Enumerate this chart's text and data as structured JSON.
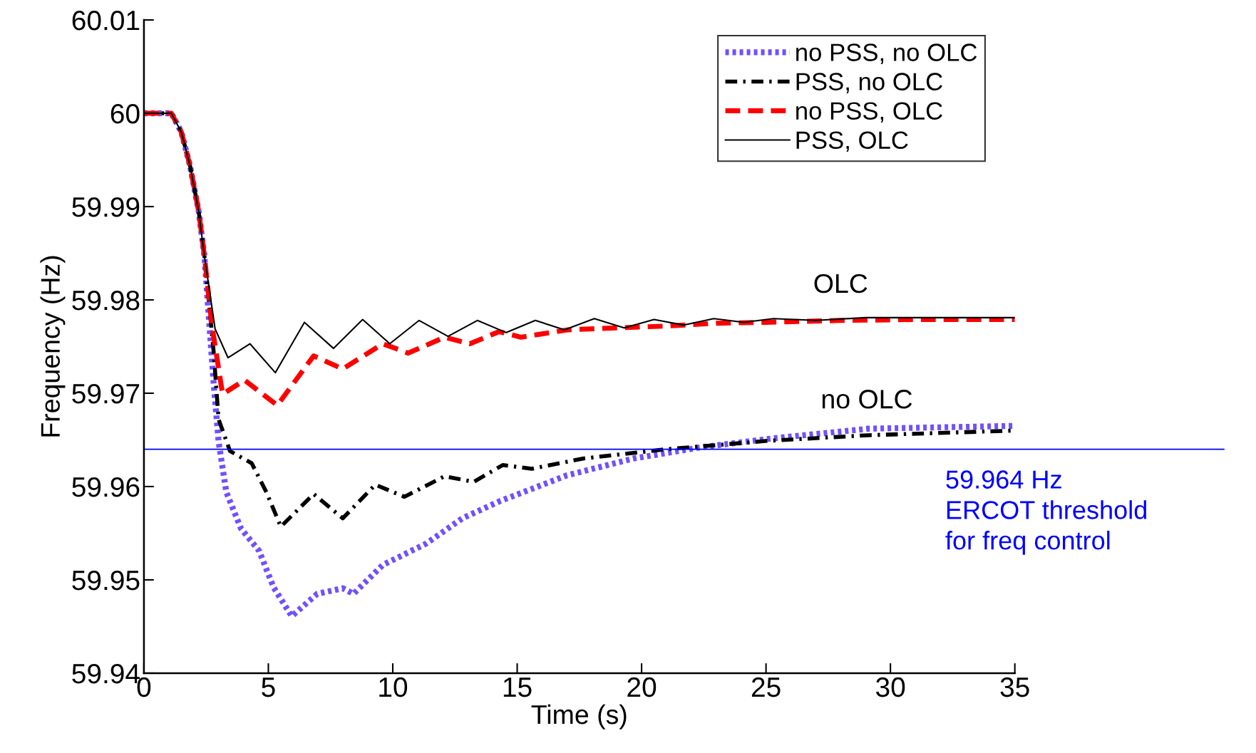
{
  "chart_data": {
    "type": "line",
    "xlabel": "Time (s)",
    "ylabel": "Frequency (Hz)",
    "xlim": [
      0,
      35
    ],
    "ylim": [
      59.94,
      60.01
    ],
    "xticks": [
      0,
      5,
      10,
      15,
      20,
      25,
      30,
      35
    ],
    "yticks": [
      59.94,
      59.95,
      59.96,
      59.97,
      59.98,
      59.99,
      60,
      60.01
    ],
    "grid": false,
    "legend": "top right",
    "series": [
      {
        "name": "no PSS, no OLC",
        "color": "#7050ff",
        "line_style": "dotted",
        "x": [
          0,
          1.1,
          1.5,
          1.85,
          2.2,
          2.43,
          2.8,
          3.0,
          3.31,
          3.9,
          4.63,
          5.21,
          5.94,
          6.96,
          7.99,
          8.42,
          9.6,
          11.35,
          12.8,
          14.27,
          17.0,
          19.67,
          22.37,
          25.07,
          29.1,
          35
        ],
        "values": [
          60,
          60,
          59.998,
          59.9944,
          59.9895,
          59.9847,
          59.9711,
          59.9648,
          59.9594,
          59.9555,
          59.9531,
          59.9492,
          59.9461,
          59.9485,
          59.9491,
          59.9485,
          59.9516,
          59.9539,
          59.9566,
          59.9584,
          59.9612,
          59.963,
          59.9642,
          59.9651,
          59.9662,
          59.9665
        ]
      },
      {
        "name": "PSS, no OLC",
        "color": "#000000",
        "line_style": "dashdot",
        "x": [
          0,
          1.1,
          1.5,
          1.85,
          2.2,
          2.43,
          2.8,
          3.0,
          3.46,
          4.33,
          4.92,
          5.5,
          6.82,
          7.99,
          9.3,
          10.47,
          12.08,
          13.25,
          14.42,
          15.58,
          17.64,
          21.0,
          25.07,
          29.1,
          35
        ],
        "values": [
          60,
          60,
          59.998,
          59.9944,
          59.9895,
          59.9847,
          59.9745,
          59.9672,
          59.9638,
          59.9625,
          59.9594,
          59.9557,
          59.9592,
          59.9566,
          59.9602,
          59.9589,
          59.9611,
          59.9605,
          59.9623,
          59.9619,
          59.963,
          59.964,
          59.9649,
          59.9655,
          59.966
        ]
      },
      {
        "name": "no PSS, OLC",
        "color": "#ff0000",
        "line_style": "dashed",
        "x": [
          0,
          1.1,
          1.5,
          1.85,
          2.2,
          2.43,
          2.72,
          3.16,
          4.04,
          5.36,
          6.82,
          7.99,
          9.6,
          10.62,
          12.08,
          13.1,
          14.27,
          15.15,
          17.05,
          19,
          21,
          23,
          25,
          28,
          31,
          35
        ],
        "values": [
          60,
          60,
          59.998,
          59.9944,
          59.9895,
          59.9847,
          59.9775,
          59.9699,
          59.9714,
          59.9687,
          59.974,
          59.9726,
          59.9753,
          59.9743,
          59.976,
          59.9753,
          59.9766,
          59.976,
          59.9768,
          59.977,
          59.9772,
          59.9775,
          59.9776,
          59.9778,
          59.9779,
          59.9779
        ]
      },
      {
        "name": "PSS, OLC",
        "color": "#000000",
        "line_style": "solid",
        "x": [
          0,
          1.1,
          1.5,
          1.85,
          2.2,
          2.43,
          2.86,
          3.38,
          4.26,
          5.28,
          6.45,
          7.62,
          8.79,
          9.88,
          11.06,
          12.22,
          13.4,
          14.56,
          15.73,
          16.9,
          18.1,
          19.3,
          20.5,
          21.7,
          22.9,
          24.1,
          25.3,
          27,
          29,
          32,
          35
        ],
        "values": [
          60,
          60,
          59.998,
          59.9944,
          59.9895,
          59.9847,
          59.9769,
          59.9738,
          59.9753,
          59.9722,
          59.9776,
          59.9748,
          59.9779,
          59.9753,
          59.9778,
          59.9761,
          59.9778,
          59.9765,
          59.9778,
          59.9768,
          59.978,
          59.977,
          59.9779,
          59.9773,
          59.978,
          59.9776,
          59.978,
          59.9778,
          59.9781,
          59.9781,
          59.9781
        ]
      }
    ],
    "ref_lines": [
      {
        "axis": "y",
        "value": 59.964,
        "label": "59.964 Hz\nERCOT threshold\nfor freq control",
        "color": "#0000ff",
        "line_style": "solid"
      }
    ],
    "annotations": [
      "OLC",
      "no OLC"
    ]
  }
}
